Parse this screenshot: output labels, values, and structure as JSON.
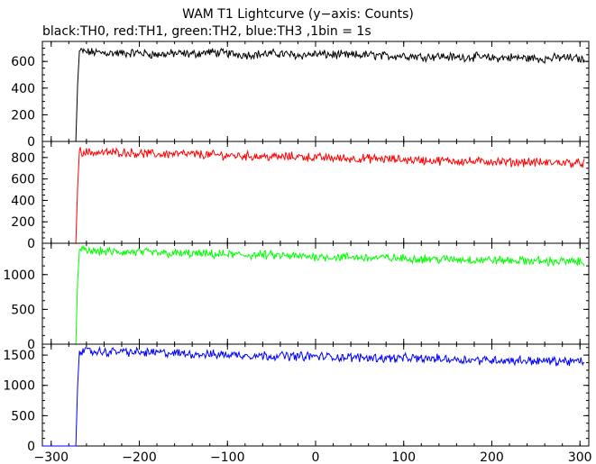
{
  "title": "WAM T1 Lightcurve (y−axis: Counts)",
  "subtitle": "black:TH0, red:TH1, green:TH2, blue:TH3 ,1bin = 1s",
  "chart_data": {
    "type": "line",
    "xlim": [
      -310,
      310
    ],
    "x_ticks": [
      -300,
      -200,
      -100,
      0,
      100,
      200,
      300
    ],
    "x_tick_labels": [
      "−300",
      "−200",
      "−100",
      "0",
      "100",
      "200",
      "300"
    ],
    "panels": [
      {
        "series": "TH0",
        "color": "#000000",
        "ylim": [
          0,
          750
        ],
        "y_ticks": [
          0,
          200,
          400,
          600
        ],
        "y_tick_labels": [
          "0",
          "200",
          "400",
          "600"
        ],
        "x": [
          -310,
          -272,
          -270,
          -268,
          -260,
          -240,
          -220,
          -200,
          -180,
          -160,
          -140,
          -120,
          -100,
          -80,
          -60,
          -40,
          -20,
          0,
          20,
          40,
          60,
          80,
          100,
          120,
          140,
          160,
          180,
          200,
          220,
          240,
          260,
          280,
          300,
          305
        ],
        "y": [
          0,
          0,
          430,
          680,
          670,
          665,
          660,
          665,
          650,
          660,
          655,
          670,
          660,
          650,
          655,
          660,
          645,
          655,
          650,
          645,
          650,
          640,
          645,
          635,
          640,
          630,
          635,
          625,
          630,
          625,
          620,
          630,
          620,
          615
        ]
      },
      {
        "series": "TH1",
        "color": "#ff0000",
        "ylim": [
          0,
          950
        ],
        "y_ticks": [
          0,
          200,
          400,
          600,
          800
        ],
        "y_tick_labels": [
          "0",
          "200",
          "400",
          "600",
          "800"
        ],
        "x": [
          -310,
          -272,
          -270,
          -268,
          -260,
          -240,
          -220,
          -200,
          -180,
          -160,
          -140,
          -120,
          -100,
          -80,
          -60,
          -40,
          -20,
          0,
          20,
          40,
          60,
          80,
          100,
          120,
          140,
          160,
          180,
          200,
          220,
          240,
          260,
          280,
          300,
          305
        ],
        "y": [
          0,
          0,
          530,
          860,
          850,
          845,
          850,
          840,
          830,
          835,
          830,
          825,
          820,
          815,
          810,
          805,
          810,
          800,
          795,
          790,
          790,
          785,
          780,
          775,
          770,
          770,
          760,
          765,
          755,
          760,
          750,
          755,
          745,
          750
        ]
      },
      {
        "series": "TH2",
        "color": "#00ff00",
        "ylim": [
          0,
          1450
        ],
        "y_ticks": [
          0,
          500,
          1000
        ],
        "y_tick_labels": [
          "0",
          "500",
          "1000"
        ],
        "x": [
          -310,
          -272,
          -270,
          -268,
          -260,
          -240,
          -220,
          -200,
          -180,
          -160,
          -140,
          -120,
          -100,
          -80,
          -60,
          -40,
          -20,
          0,
          20,
          40,
          60,
          80,
          100,
          120,
          140,
          160,
          180,
          200,
          220,
          240,
          260,
          280,
          300,
          305
        ],
        "y": [
          0,
          0,
          900,
          1360,
          1340,
          1330,
          1320,
          1320,
          1310,
          1300,
          1300,
          1290,
          1290,
          1280,
          1280,
          1270,
          1260,
          1260,
          1250,
          1250,
          1240,
          1240,
          1230,
          1230,
          1220,
          1220,
          1210,
          1210,
          1200,
          1200,
          1190,
          1190,
          1180,
          1180
        ]
      },
      {
        "series": "TH3",
        "color": "#0000ff",
        "ylim": [
          0,
          1680
        ],
        "y_ticks": [
          0,
          500,
          1000,
          1500
        ],
        "y_tick_labels": [
          "0",
          "500",
          "1000",
          "1500"
        ],
        "x": [
          -310,
          -272,
          -270,
          -268,
          -260,
          -240,
          -220,
          -200,
          -180,
          -160,
          -140,
          -120,
          -100,
          -80,
          -60,
          -40,
          -20,
          0,
          20,
          40,
          60,
          80,
          100,
          120,
          140,
          160,
          180,
          200,
          220,
          240,
          260,
          280,
          300,
          305
        ],
        "y": [
          0,
          0,
          1000,
          1570,
          1560,
          1550,
          1560,
          1540,
          1540,
          1530,
          1520,
          1510,
          1510,
          1500,
          1490,
          1490,
          1480,
          1480,
          1470,
          1460,
          1460,
          1450,
          1450,
          1440,
          1440,
          1430,
          1420,
          1420,
          1410,
          1410,
          1400,
          1400,
          1390,
          1390
        ]
      }
    ]
  }
}
